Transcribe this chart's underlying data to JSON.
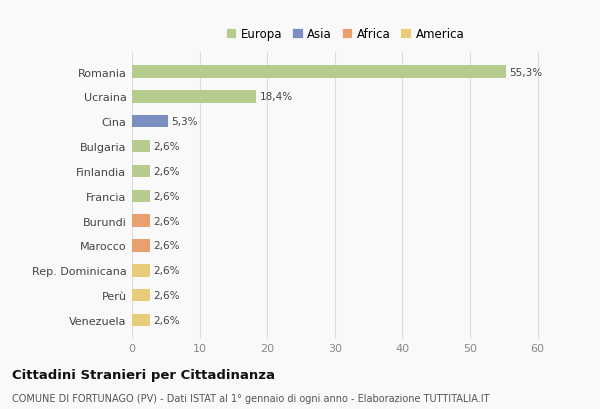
{
  "categories": [
    "Venezuela",
    "Perù",
    "Rep. Dominicana",
    "Marocco",
    "Burundi",
    "Francia",
    "Finlandia",
    "Bulgaria",
    "Cina",
    "Ucraina",
    "Romania"
  ],
  "values": [
    2.6,
    2.6,
    2.6,
    2.6,
    2.6,
    2.6,
    2.6,
    2.6,
    5.3,
    18.4,
    55.3
  ],
  "labels": [
    "2,6%",
    "2,6%",
    "2,6%",
    "2,6%",
    "2,6%",
    "2,6%",
    "2,6%",
    "2,6%",
    "5,3%",
    "18,4%",
    "55,3%"
  ],
  "colors": [
    "#e8cc7a",
    "#e8cc7a",
    "#e8cc7a",
    "#e8a070",
    "#e8a070",
    "#b5cc8e",
    "#b5cc8e",
    "#b5cc8e",
    "#7a8fbf",
    "#b5cc8e",
    "#b5cc8e"
  ],
  "legend_labels": [
    "Europa",
    "Asia",
    "Africa",
    "America"
  ],
  "legend_colors": [
    "#b5cc8e",
    "#7a8fbf",
    "#e8a070",
    "#e8cc7a"
  ],
  "xlim": [
    0,
    63
  ],
  "xticks": [
    0,
    10,
    20,
    30,
    40,
    50,
    60
  ],
  "title": "Cittadini Stranieri per Cittadinanza",
  "subtitle": "COMUNE DI FORTUNAGO (PV) - Dati ISTAT al 1° gennaio di ogni anno - Elaborazione TUTTITALIA.IT",
  "background_color": "#f9f9f9",
  "grid_color": "#dddddd"
}
